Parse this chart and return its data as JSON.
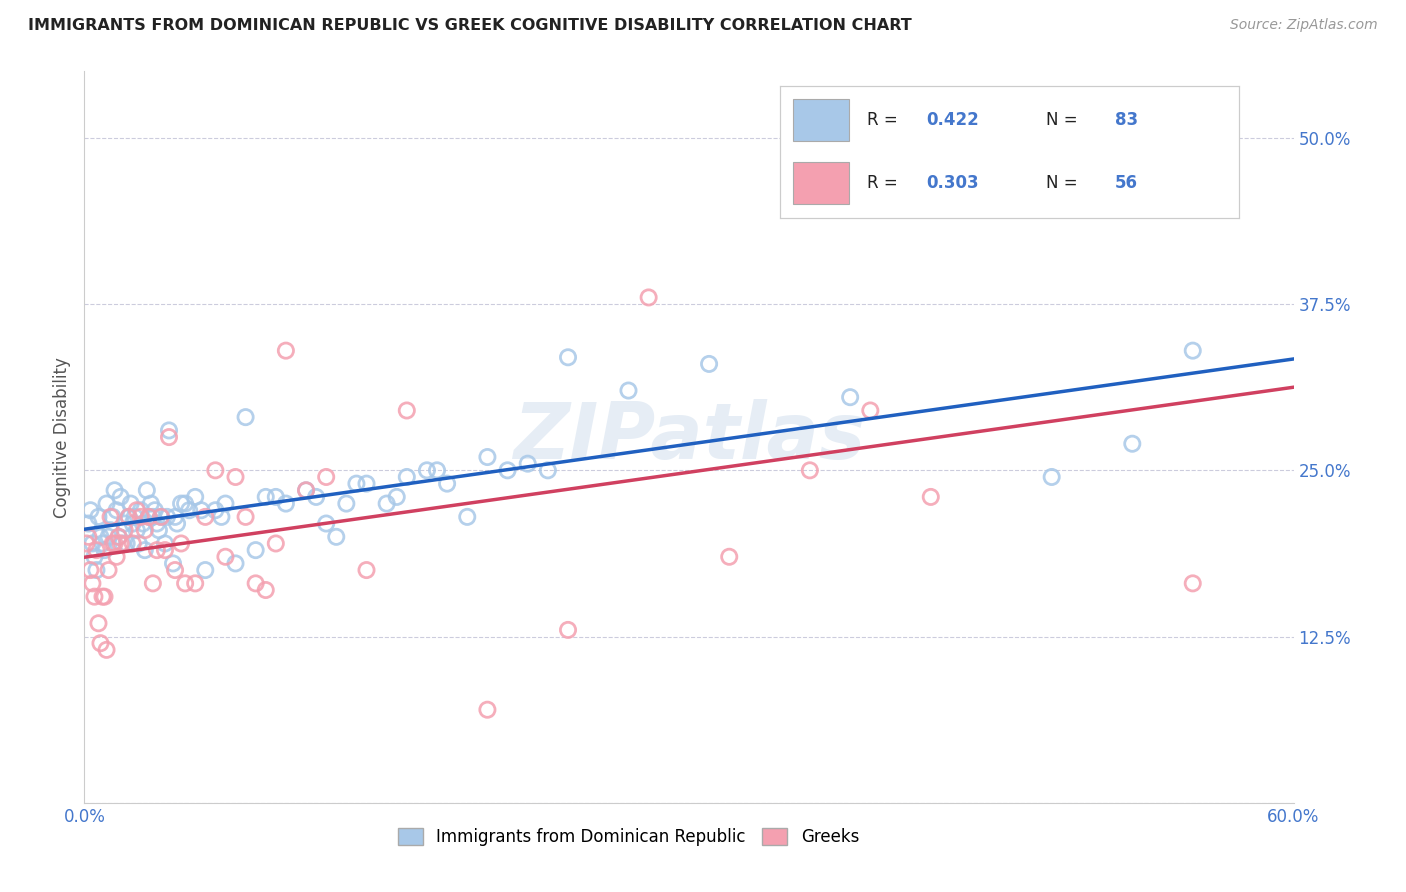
{
  "title": "IMMIGRANTS FROM DOMINICAN REPUBLIC VS GREEK COGNITIVE DISABILITY CORRELATION CHART",
  "source": "Source: ZipAtlas.com",
  "ylabel": "Cognitive Disability",
  "xlim": [
    0.0,
    0.6
  ],
  "ylim": [
    0.0,
    0.55
  ],
  "xticks": [
    0.0,
    0.1,
    0.2,
    0.3,
    0.4,
    0.5,
    0.6
  ],
  "xticklabels": [
    "0.0%",
    "",
    "",
    "",
    "",
    "",
    "60.0%"
  ],
  "yticks": [
    0.0,
    0.125,
    0.25,
    0.375,
    0.5
  ],
  "yticklabels_left": [
    "",
    "",
    "",
    "",
    ""
  ],
  "yticklabels_right": [
    "",
    "12.5%",
    "25.0%",
    "37.5%",
    "50.0%"
  ],
  "blue_scatter_color": "#a8c8e8",
  "pink_scatter_color": "#f4a0b0",
  "blue_line_color": "#2060c0",
  "pink_line_color": "#d04060",
  "blue_R": 0.422,
  "blue_N": 83,
  "pink_R": 0.303,
  "pink_N": 56,
  "legend_label_blue": "Immigrants from Dominican Republic",
  "legend_label_pink": "Greeks",
  "watermark": "ZIPatlas",
  "grid_color": "#ccccdd",
  "tick_label_color": "#4477cc",
  "legend_R_color": "#222222",
  "legend_N_color": "#4477cc",
  "blue_scatter_x": [
    0.002,
    0.003,
    0.004,
    0.005,
    0.006,
    0.007,
    0.008,
    0.009,
    0.01,
    0.011,
    0.012,
    0.013,
    0.014,
    0.015,
    0.016,
    0.017,
    0.018,
    0.019,
    0.02,
    0.021,
    0.022,
    0.023,
    0.024,
    0.025,
    0.026,
    0.027,
    0.028,
    0.029,
    0.03,
    0.031,
    0.032,
    0.033,
    0.034,
    0.035,
    0.036,
    0.037,
    0.038,
    0.04,
    0.041,
    0.042,
    0.044,
    0.045,
    0.046,
    0.048,
    0.05,
    0.052,
    0.055,
    0.058,
    0.06,
    0.065,
    0.068,
    0.07,
    0.075,
    0.08,
    0.085,
    0.09,
    0.095,
    0.1,
    0.11,
    0.115,
    0.12,
    0.125,
    0.13,
    0.135,
    0.14,
    0.15,
    0.155,
    0.16,
    0.17,
    0.175,
    0.18,
    0.19,
    0.2,
    0.21,
    0.22,
    0.23,
    0.24,
    0.27,
    0.31,
    0.38,
    0.48,
    0.52,
    0.55
  ],
  "blue_scatter_y": [
    0.21,
    0.22,
    0.195,
    0.185,
    0.175,
    0.215,
    0.2,
    0.195,
    0.19,
    0.225,
    0.2,
    0.205,
    0.215,
    0.235,
    0.22,
    0.2,
    0.23,
    0.195,
    0.21,
    0.195,
    0.215,
    0.225,
    0.21,
    0.215,
    0.205,
    0.195,
    0.22,
    0.21,
    0.19,
    0.235,
    0.215,
    0.225,
    0.215,
    0.22,
    0.21,
    0.205,
    0.215,
    0.195,
    0.215,
    0.28,
    0.18,
    0.215,
    0.21,
    0.225,
    0.225,
    0.22,
    0.23,
    0.22,
    0.175,
    0.22,
    0.215,
    0.225,
    0.18,
    0.29,
    0.19,
    0.23,
    0.23,
    0.225,
    0.235,
    0.23,
    0.21,
    0.2,
    0.225,
    0.24,
    0.24,
    0.225,
    0.23,
    0.245,
    0.25,
    0.25,
    0.24,
    0.215,
    0.26,
    0.25,
    0.255,
    0.25,
    0.335,
    0.31,
    0.33,
    0.305,
    0.245,
    0.27,
    0.34
  ],
  "pink_scatter_x": [
    0.001,
    0.002,
    0.003,
    0.004,
    0.005,
    0.006,
    0.007,
    0.008,
    0.009,
    0.01,
    0.011,
    0.012,
    0.013,
    0.014,
    0.015,
    0.016,
    0.017,
    0.018,
    0.02,
    0.022,
    0.024,
    0.026,
    0.028,
    0.03,
    0.032,
    0.034,
    0.036,
    0.038,
    0.04,
    0.042,
    0.045,
    0.048,
    0.05,
    0.055,
    0.06,
    0.065,
    0.07,
    0.075,
    0.08,
    0.085,
    0.09,
    0.095,
    0.1,
    0.11,
    0.12,
    0.14,
    0.16,
    0.2,
    0.24,
    0.28,
    0.32,
    0.36,
    0.39,
    0.42,
    0.46,
    0.55
  ],
  "pink_scatter_y": [
    0.195,
    0.2,
    0.175,
    0.165,
    0.155,
    0.19,
    0.135,
    0.12,
    0.155,
    0.155,
    0.115,
    0.175,
    0.215,
    0.195,
    0.195,
    0.185,
    0.2,
    0.195,
    0.205,
    0.215,
    0.195,
    0.22,
    0.215,
    0.205,
    0.215,
    0.165,
    0.19,
    0.215,
    0.19,
    0.275,
    0.175,
    0.195,
    0.165,
    0.165,
    0.215,
    0.25,
    0.185,
    0.245,
    0.215,
    0.165,
    0.16,
    0.195,
    0.34,
    0.235,
    0.245,
    0.175,
    0.295,
    0.07,
    0.13,
    0.38,
    0.185,
    0.25,
    0.295,
    0.23,
    0.5,
    0.165
  ]
}
